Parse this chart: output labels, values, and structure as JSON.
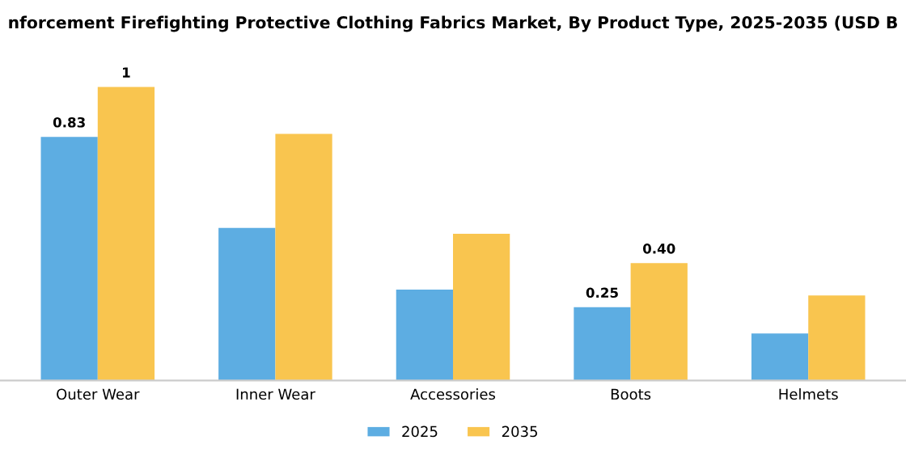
{
  "chart_data": {
    "type": "bar",
    "title": "nforcement Firefighting Protective Clothing Fabrics Market, By Product Type, 2025-2035 (USD B",
    "categories": [
      "Outer Wear",
      "Inner Wear",
      "Accessories",
      "Boots",
      "Helmets"
    ],
    "series": [
      {
        "name": "2025",
        "color": "#5dade2",
        "values": [
          0.83,
          0.52,
          0.31,
          0.25,
          0.16
        ],
        "value_labels": [
          "0.83",
          null,
          null,
          "0.25",
          null
        ]
      },
      {
        "name": "2035",
        "color": "#f9c54f",
        "values": [
          1,
          0.84,
          0.5,
          0.4,
          0.29
        ],
        "value_labels": [
          "1",
          null,
          null,
          "0.40",
          null
        ]
      }
    ],
    "legend": "bottom",
    "grid": false,
    "tick_labels": "x"
  }
}
